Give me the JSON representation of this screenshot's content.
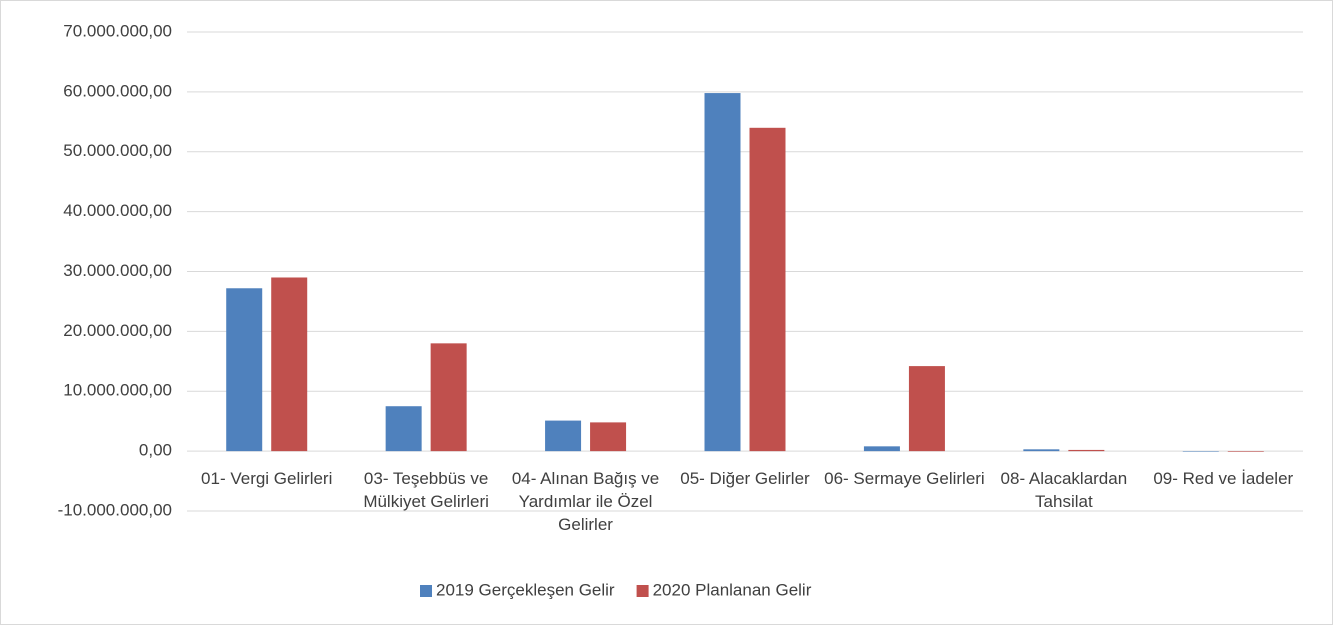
{
  "chart_data": {
    "type": "bar",
    "categories": [
      "01- Vergi Gelirleri",
      "03- Teşebbüs ve Mülkiyet Gelirleri",
      "04- Alınan Bağış ve Yardımlar ile Özel Gelirler",
      "05- Diğer Gelirler",
      "06- Sermaye Gelirleri",
      "08- Alacaklardan Tahsilat",
      "09- Red ve İadeler"
    ],
    "series": [
      {
        "name": "2019 Gerçekleşen Gelir",
        "color": "#4f81bd",
        "values": [
          27200000,
          7500000,
          5100000,
          59800000,
          800000,
          300000,
          0
        ]
      },
      {
        "name": "2020 Planlanan Gelir",
        "color": "#c0504d",
        "values": [
          29000000,
          18000000,
          4800000,
          54000000,
          14200000,
          200000,
          -100000
        ]
      }
    ],
    "ylim": [
      -10000000,
      70000000
    ],
    "yticks": [
      {
        "value": -10000000,
        "label": "-10.000.000,00"
      },
      {
        "value": 0,
        "label": "0,00"
      },
      {
        "value": 10000000,
        "label": "10.000.000,00"
      },
      {
        "value": 20000000,
        "label": "20.000.000,00"
      },
      {
        "value": 30000000,
        "label": "30.000.000,00"
      },
      {
        "value": 40000000,
        "label": "40.000.000,00"
      },
      {
        "value": 50000000,
        "label": "50.000.000,00"
      },
      {
        "value": 60000000,
        "label": "60.000.000,00"
      },
      {
        "value": 70000000,
        "label": "70.000.000,00"
      }
    ],
    "grid": true,
    "legend": "bottom"
  }
}
